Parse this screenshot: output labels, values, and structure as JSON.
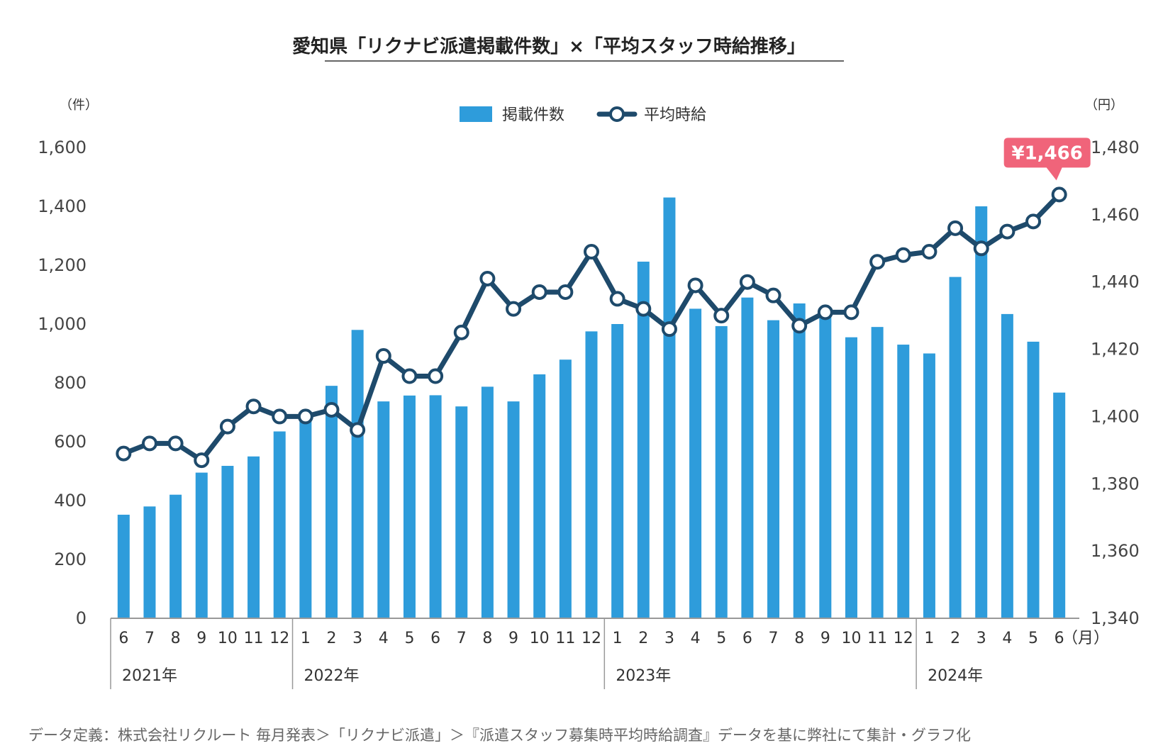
{
  "title": "愛知県「リクナビ派遣掲載件数」×「平均スタッフ時給推移」",
  "legend": {
    "bar_label": "掲載件数",
    "line_label": "平均時給"
  },
  "axes": {
    "left_unit": "（件）",
    "right_unit": "（円）",
    "month_unit": "（月）"
  },
  "callout": {
    "label": "¥1,466",
    "color": "#f0647a"
  },
  "years": [
    "2021年",
    "2022年",
    "2023年",
    "2024年"
  ],
  "footnote": "データ定義：株式会社リクルート 毎月発表＞「リクナビ派遣」＞『派遣スタッフ募集時平均時給調査』データを基に弊社にて集計・グラフ化",
  "colors": {
    "bar": "#2e9cdb",
    "line": "#1e4a6b",
    "axis": "#999999"
  },
  "chart_data": {
    "type": "bar+line",
    "categories": [
      "6",
      "7",
      "8",
      "9",
      "10",
      "11",
      "12",
      "1",
      "2",
      "3",
      "4",
      "5",
      "6",
      "7",
      "8",
      "9",
      "10",
      "11",
      "12",
      "1",
      "2",
      "3",
      "4",
      "5",
      "6",
      "7",
      "8",
      "9",
      "10",
      "11",
      "12",
      "1",
      "2",
      "3",
      "4",
      "5",
      "6"
    ],
    "year_groups": [
      {
        "label": "2021年",
        "count": 7
      },
      {
        "label": "2022年",
        "count": 12
      },
      {
        "label": "2023年",
        "count": 12
      },
      {
        "label": "2024年",
        "count": 6
      }
    ],
    "series": [
      {
        "name": "掲載件数",
        "type": "bar",
        "axis": "left",
        "values": [
          352,
          380,
          420,
          495,
          518,
          550,
          635,
          690,
          790,
          980,
          737,
          757,
          758,
          720,
          787,
          737,
          829,
          879,
          975,
          1000,
          1212,
          1430,
          1052,
          993,
          1090,
          1013,
          1070,
          1040,
          955,
          990,
          930,
          900,
          1160,
          1400,
          1034,
          940,
          767
        ]
      },
      {
        "name": "平均時給",
        "type": "line",
        "axis": "right",
        "values": [
          1389,
          1392,
          1392,
          1387,
          1397,
          1403,
          1400,
          1400,
          1402,
          1396,
          1418,
          1412,
          1412,
          1425,
          1441,
          1432,
          1437,
          1437,
          1449,
          1435,
          1432,
          1426,
          1439,
          1430,
          1440,
          1436,
          1427,
          1431,
          1431,
          1446,
          1448,
          1449,
          1456,
          1450,
          1455,
          1458,
          1466
        ]
      }
    ],
    "left_axis": {
      "ylim": [
        0,
        1600
      ],
      "ticks": [
        "0",
        "200",
        "400",
        "600",
        "800",
        "1,000",
        "1,200",
        "1,400",
        "1,600"
      ]
    },
    "right_axis": {
      "ylim": [
        1340,
        1480
      ],
      "ticks": [
        "1,340",
        "1,360",
        "1,380",
        "1,400",
        "1,420",
        "1,440",
        "1,460",
        "1,480"
      ]
    },
    "legend_position": "top-center",
    "grid": false
  }
}
